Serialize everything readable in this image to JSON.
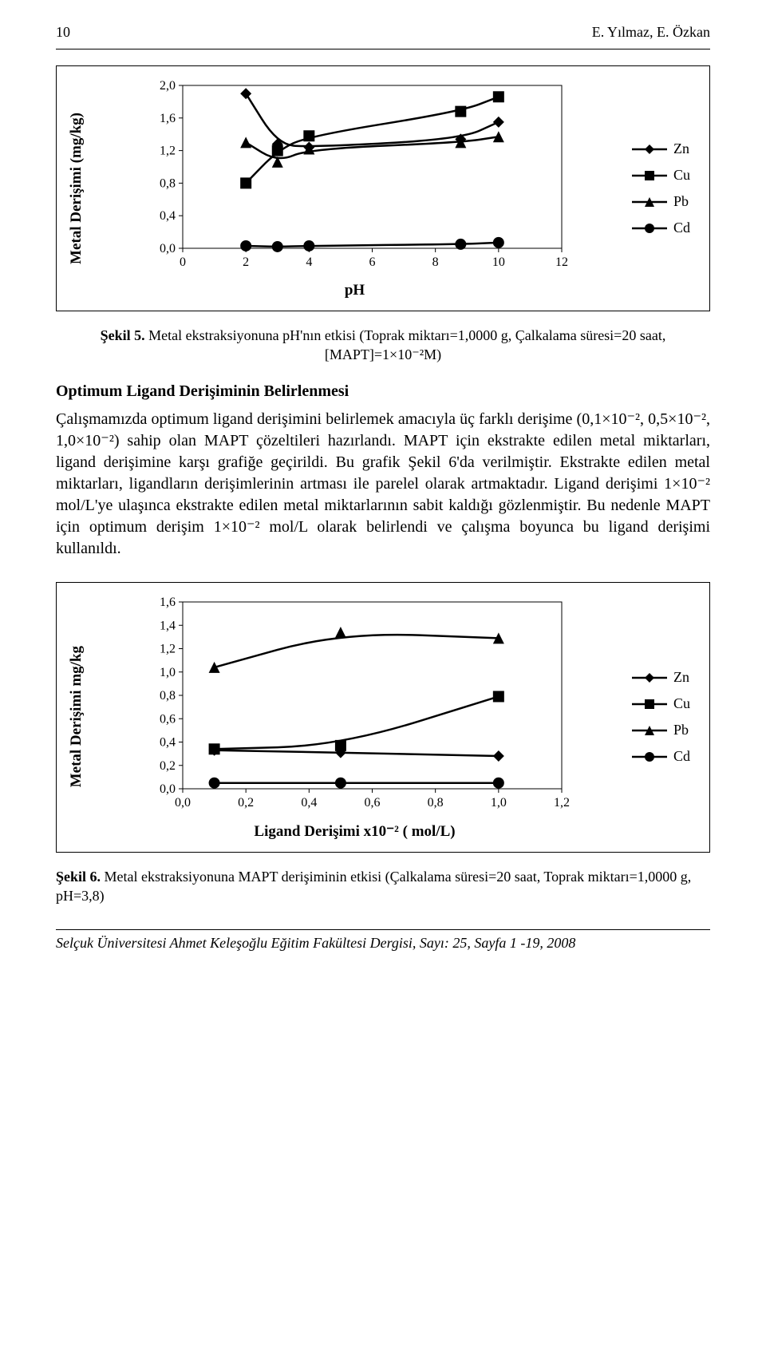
{
  "header": {
    "page_number": "10",
    "authors": "E. Yılmaz, E. Özkan"
  },
  "chart1": {
    "type": "line",
    "y_label": "Metal Derişimi (mg/kg)",
    "x_label": "pH",
    "x_ticks": [
      "0",
      "2",
      "4",
      "6",
      "8",
      "10",
      "12"
    ],
    "y_ticks": [
      "0,0",
      "0,4",
      "0,8",
      "1,2",
      "1,6",
      "2,0"
    ],
    "x_range": [
      0,
      12
    ],
    "y_range": [
      0,
      2.0
    ],
    "legend": [
      "Zn",
      "Cu",
      "Pb",
      "Cd"
    ],
    "plot_bg": "#ffffff",
    "border_color": "#000000",
    "line_color": "#000000",
    "line_width": 2.5,
    "series": {
      "Zn": {
        "marker": "diamond",
        "data": [
          [
            2,
            1.9
          ],
          [
            3,
            1.28
          ],
          [
            4,
            1.24
          ],
          [
            8.8,
            1.34
          ],
          [
            10,
            1.55
          ]
        ]
      },
      "Cu": {
        "marker": "square",
        "data": [
          [
            2,
            0.8
          ],
          [
            3,
            1.2
          ],
          [
            4,
            1.38
          ],
          [
            8.8,
            1.68
          ],
          [
            10,
            1.86
          ]
        ]
      },
      "Pb": {
        "marker": "triangle",
        "data": [
          [
            2,
            1.3
          ],
          [
            3,
            1.06
          ],
          [
            4,
            1.22
          ],
          [
            8.8,
            1.3
          ],
          [
            10,
            1.37
          ]
        ]
      },
      "Cd": {
        "marker": "circle",
        "data": [
          [
            2,
            0.03
          ],
          [
            3,
            0.02
          ],
          [
            4,
            0.03
          ],
          [
            8.8,
            0.05
          ],
          [
            10,
            0.07
          ]
        ]
      }
    }
  },
  "caption1": {
    "bold": "Şekil 5.",
    "text": " Metal ekstraksiyonuna pH'nın etkisi (Toprak miktarı=1,0000 g, Çalkalama süresi=20 saat, [MAPT]=1×10⁻²M)"
  },
  "section_heading": "Optimum Ligand Derişiminin Belirlenmesi",
  "body": "Çalışmamızda optimum ligand derişimini belirlemek amacıyla üç farklı derişime (0,1×10⁻², 0,5×10⁻², 1,0×10⁻²) sahip olan MAPT çözeltileri hazırlandı. MAPT için ekstrakte edilen metal miktarları,  ligand derişimine karşı grafiğe geçirildi. Bu grafik Şekil 6'da verilmiştir. Ekstrakte edilen metal miktarları, ligandların derişimlerinin artması ile parelel olarak artmaktadır. Ligand derişimi 1×10⁻² mol/L'ye ulaşınca ekstrakte edilen metal miktarlarının sabit kaldığı gözlenmiştir. Bu nedenle MAPT için optimum derişim 1×10⁻² mol/L olarak belirlendi ve çalışma boyunca bu ligand derişimi kullanıldı.",
  "chart2": {
    "type": "line",
    "y_label": "Metal  Derişimi  mg/kg",
    "x_label": "Ligand Derişimi x10⁻² ( mol/L)",
    "x_ticks": [
      "0,0",
      "0,2",
      "0,4",
      "0,6",
      "0,8",
      "1,0",
      "1,2"
    ],
    "y_ticks": [
      "0,0",
      "0,2",
      "0,4",
      "0,6",
      "0,8",
      "1,0",
      "1,2",
      "1,4",
      "1,6"
    ],
    "x_range": [
      0,
      1.2
    ],
    "y_range": [
      0,
      1.6
    ],
    "legend": [
      "Zn",
      "Cu",
      "Pb",
      "Cd"
    ],
    "plot_bg": "#ffffff",
    "border_color": "#000000",
    "line_color": "#000000",
    "line_width": 2.5,
    "series": {
      "Zn": {
        "marker": "diamond",
        "data": [
          [
            0.1,
            0.33
          ],
          [
            0.5,
            0.31
          ],
          [
            1.0,
            0.28
          ]
        ]
      },
      "Cu": {
        "marker": "square",
        "data": [
          [
            0.1,
            0.34
          ],
          [
            0.5,
            0.37
          ],
          [
            1.0,
            0.79
          ]
        ]
      },
      "Pb": {
        "marker": "triangle",
        "data": [
          [
            0.1,
            1.04
          ],
          [
            0.5,
            1.34
          ],
          [
            1.0,
            1.29
          ]
        ]
      },
      "Cd": {
        "marker": "circle",
        "data": [
          [
            0.1,
            0.05
          ],
          [
            0.5,
            0.05
          ],
          [
            1.0,
            0.05
          ]
        ]
      }
    }
  },
  "caption2": {
    "bold": "Şekil 6.",
    "text": " Metal ekstraksiyonuna MAPT derişiminin etkisi (Çalkalama süresi=20 saat, Toprak miktarı=1,0000 g,  pH=3,8)"
  },
  "footer": "Selçuk Üniversitesi Ahmet Keleşoğlu Eğitim Fakültesi Dergisi, Sayı: 25, Sayfa 1 -19, 2008"
}
